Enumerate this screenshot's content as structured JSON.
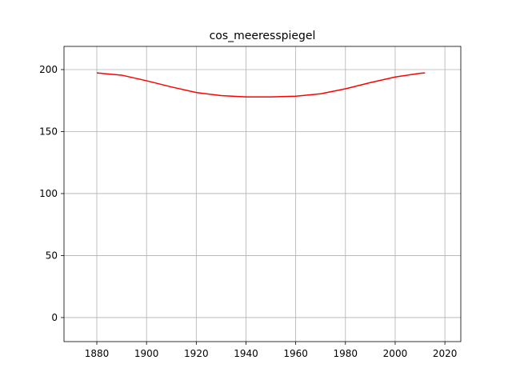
{
  "chart_data": {
    "type": "line",
    "title": "cos_meeresspiegel",
    "x": [
      1880,
      1890,
      1900,
      1910,
      1920,
      1930,
      1940,
      1950,
      1960,
      1970,
      1980,
      1990,
      2000,
      2010,
      2012
    ],
    "series": [
      {
        "name": "cos_meeresspiegel",
        "color": "#ff0000",
        "values": [
          197.3,
          195.5,
          191,
          186,
          181.5,
          179,
          178,
          178,
          178.5,
          180.5,
          184.5,
          189.5,
          194,
          197,
          197.3
        ]
      }
    ],
    "xlim": [
      1866.8,
      2026.4
    ],
    "xticks": [
      1880,
      1900,
      1920,
      1940,
      1960,
      1980,
      2000,
      2020
    ],
    "ylim": [
      -19.4,
      218.7
    ],
    "yticks": [
      0,
      50,
      100,
      150,
      200
    ],
    "grid": true
  }
}
